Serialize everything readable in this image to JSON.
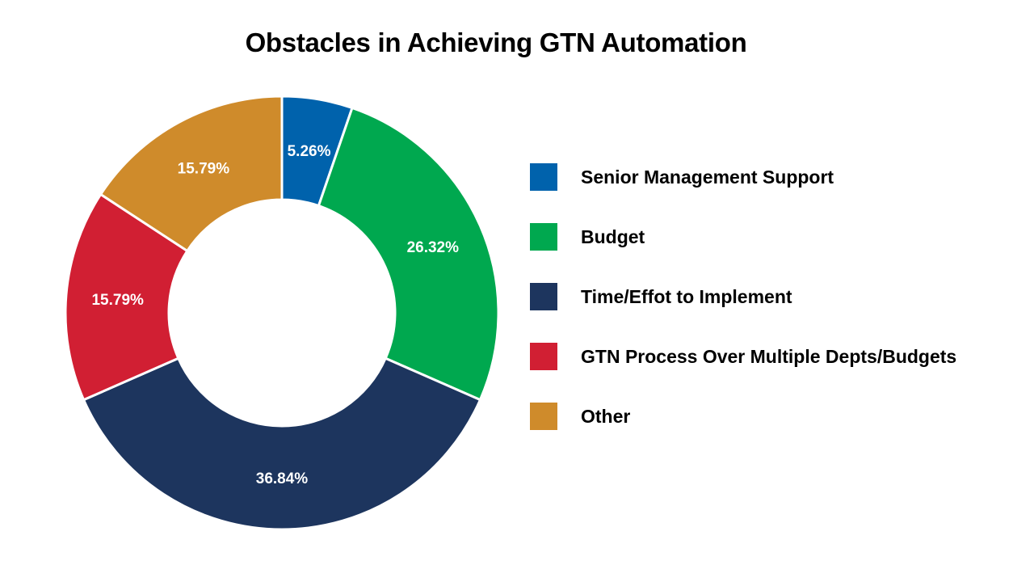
{
  "chart_data": {
    "type": "pie",
    "title": "Obstacles in Achieving GTN Automation",
    "donut": true,
    "legend_position": "right",
    "categories": [
      "Senior Management Support",
      "Budget",
      "Time/Effot to Implement",
      "GTN Process Over Multiple Depts/Budgets",
      "Other"
    ],
    "values": [
      5.26,
      26.32,
      36.84,
      15.79,
      15.79
    ],
    "data_labels": [
      "5.26%",
      "26.32%",
      "36.84%",
      "15.79%",
      "15.79%"
    ],
    "colors": [
      "#0062AC",
      "#00A84F",
      "#1D355E",
      "#D11F33",
      "#CF8B2B"
    ]
  }
}
